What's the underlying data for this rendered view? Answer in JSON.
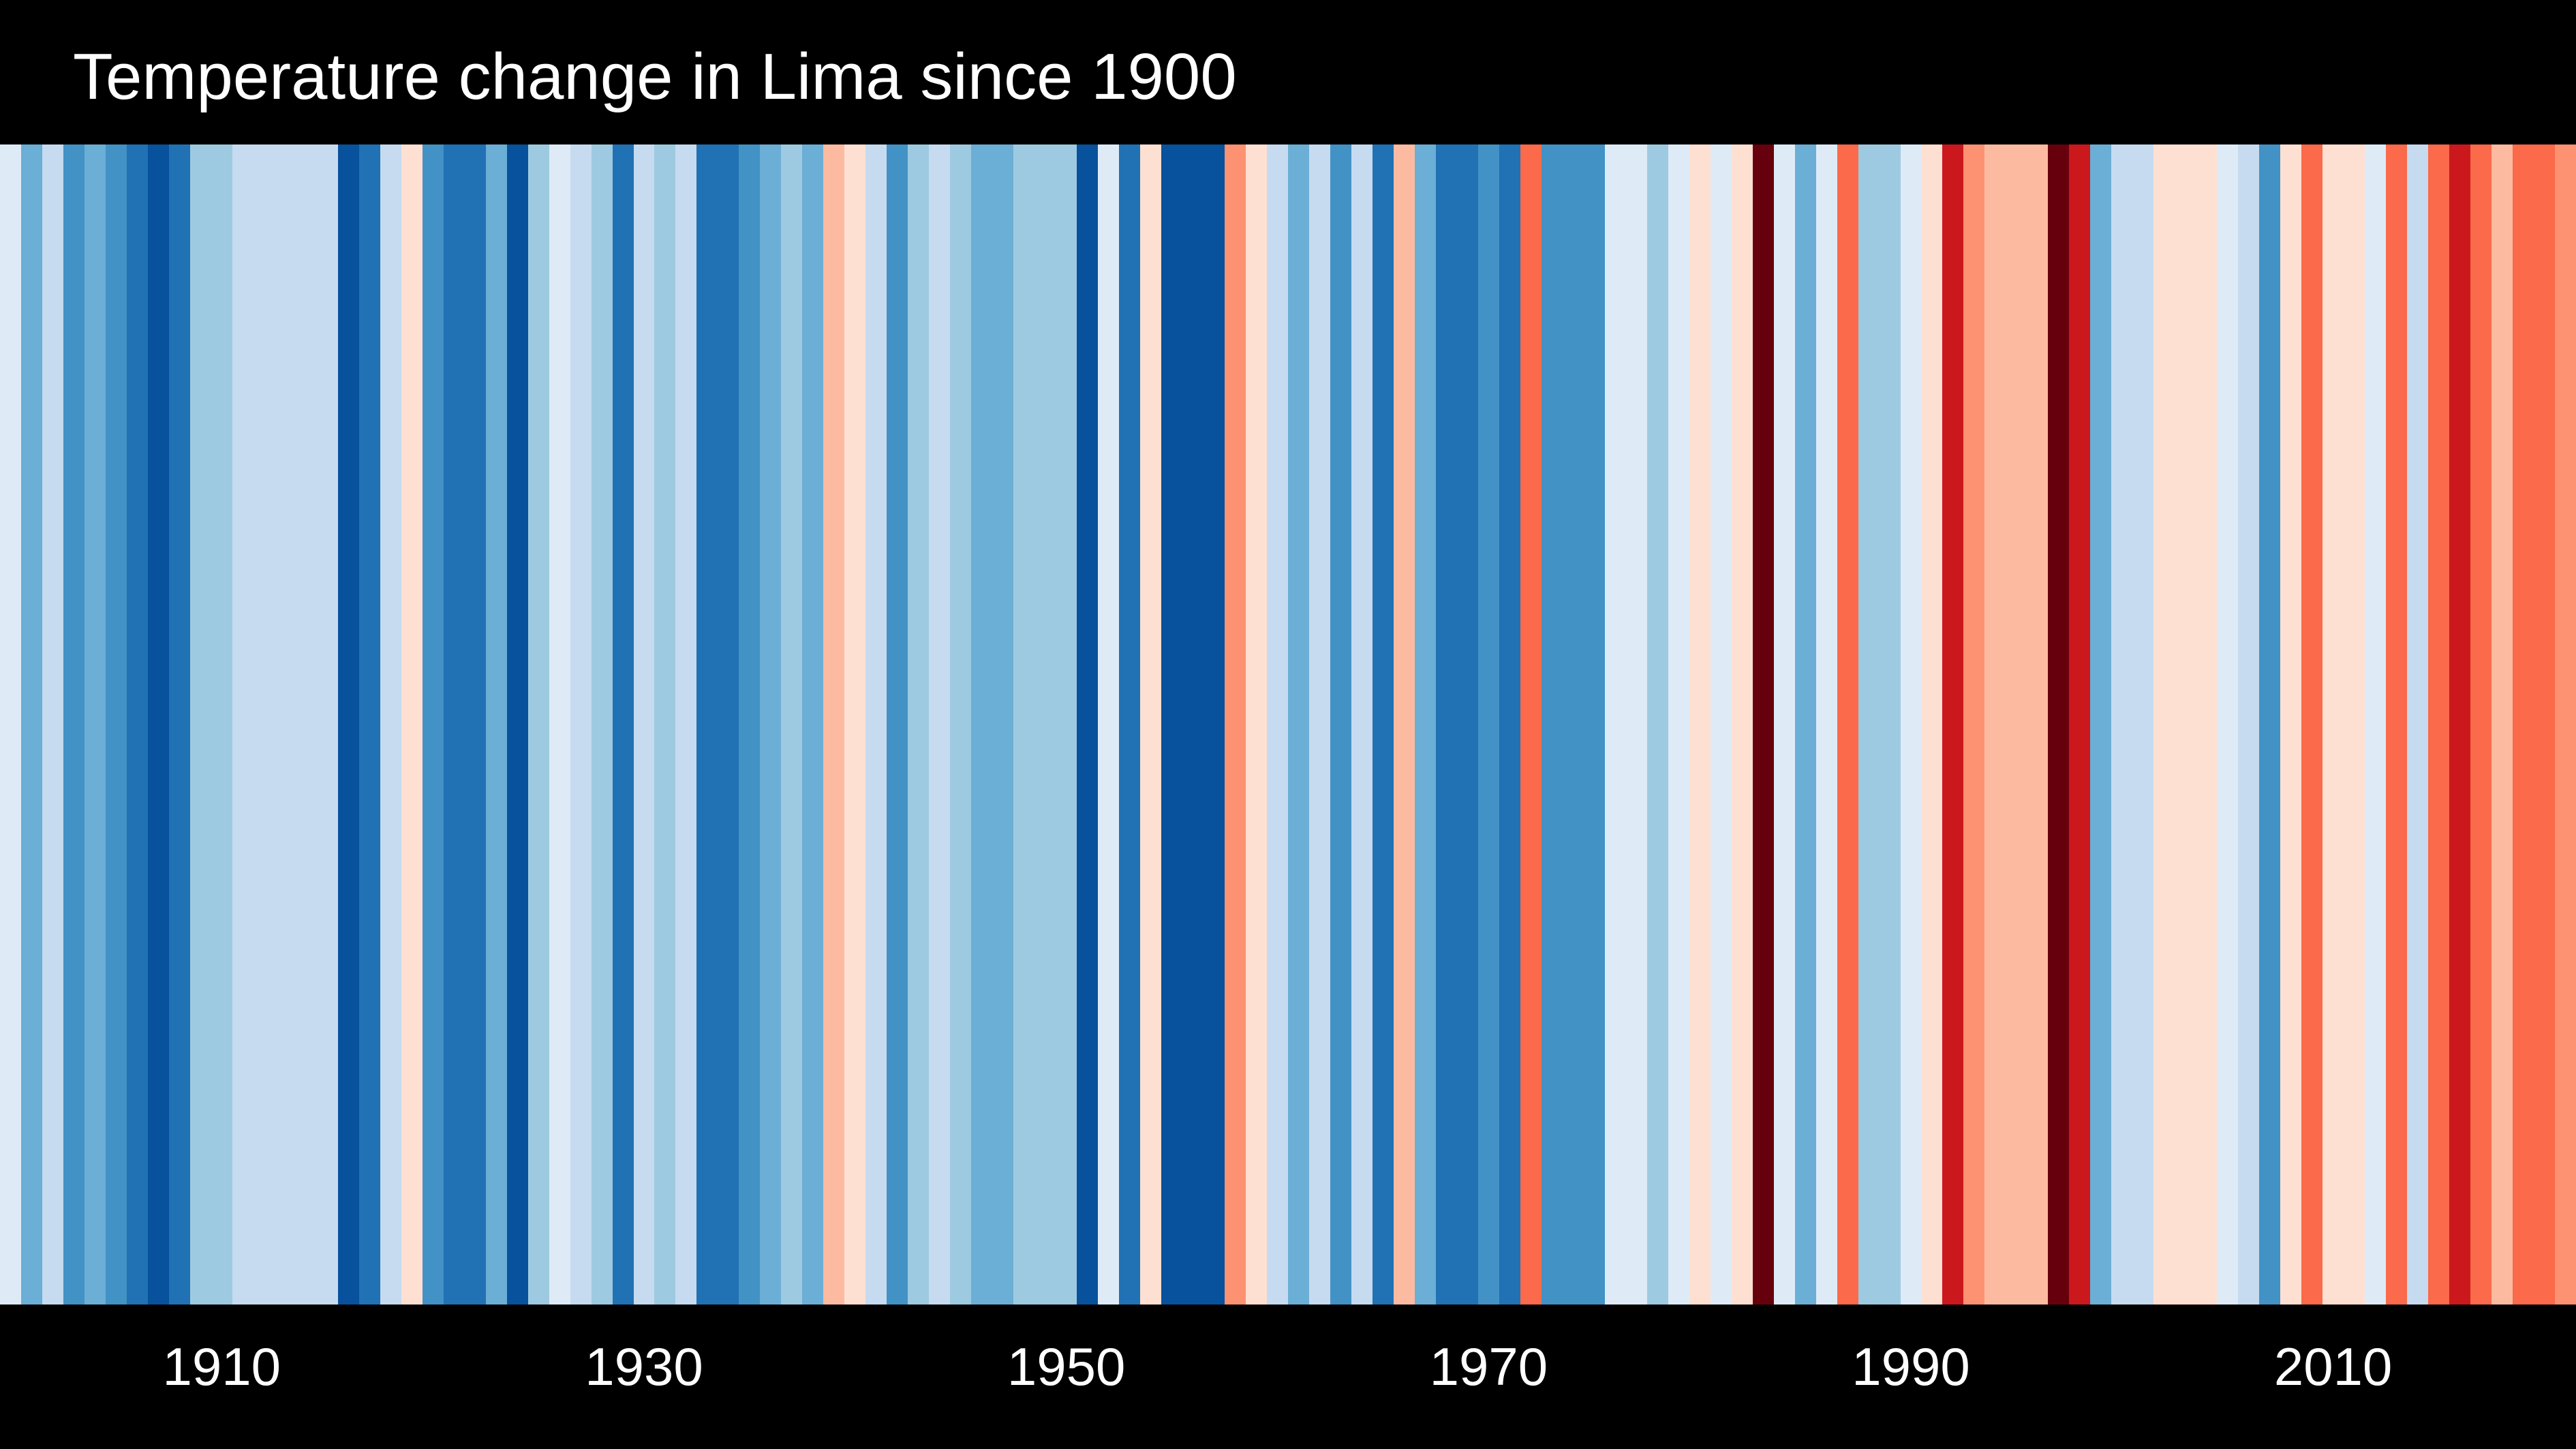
{
  "chart_data": {
    "type": "heatmap",
    "title": "Temperature change in Lima since 1900",
    "xlabel": "",
    "ylabel": "",
    "x_tick_labels": [
      "1910",
      "1930",
      "1950",
      "1970",
      "1990",
      "2010"
    ],
    "x_ticks": [
      1910,
      1930,
      1950,
      1970,
      1990,
      2010
    ],
    "x_range": [
      1900,
      2022
    ],
    "grid": false,
    "legend": "none",
    "colors": {
      "background": "#000000",
      "text": "#ffffff"
    },
    "years": [
      1900,
      1901,
      1902,
      1903,
      1904,
      1905,
      1906,
      1907,
      1908,
      1909,
      1910,
      1911,
      1912,
      1913,
      1914,
      1915,
      1916,
      1917,
      1918,
      1919,
      1920,
      1921,
      1922,
      1923,
      1924,
      1925,
      1926,
      1927,
      1928,
      1929,
      1930,
      1931,
      1932,
      1933,
      1934,
      1935,
      1936,
      1937,
      1938,
      1939,
      1940,
      1941,
      1942,
      1943,
      1944,
      1945,
      1946,
      1947,
      1948,
      1949,
      1950,
      1951,
      1952,
      1953,
      1954,
      1955,
      1956,
      1957,
      1958,
      1959,
      1960,
      1961,
      1962,
      1963,
      1964,
      1965,
      1966,
      1967,
      1968,
      1969,
      1970,
      1971,
      1972,
      1973,
      1974,
      1975,
      1976,
      1977,
      1978,
      1979,
      1980,
      1981,
      1982,
      1983,
      1984,
      1985,
      1986,
      1987,
      1988,
      1989,
      1990,
      1991,
      1992,
      1993,
      1994,
      1995,
      1996,
      1997,
      1998,
      1999,
      2000,
      2001,
      2002,
      2003,
      2004,
      2005,
      2006,
      2007,
      2008,
      2009,
      2010,
      2011,
      2012,
      2013,
      2014,
      2015,
      2016,
      2017,
      2018,
      2019,
      2020,
      2021
    ],
    "stripe_colors": [
      "#deebf7",
      "#6baed6",
      "#c6dbef",
      "#4292c6",
      "#6baed6",
      "#4292c6",
      "#2171b5",
      "#08519c",
      "#2171b5",
      "#9ecae1",
      "#9ecae1",
      "#c6dbef",
      "#c6dbef",
      "#c6dbef",
      "#c6dbef",
      "#c6dbef",
      "#08519c",
      "#2171b5",
      "#c6dbef",
      "#fee0d2",
      "#4292c6",
      "#2171b5",
      "#2171b5",
      "#6baed6",
      "#08519c",
      "#9ecae1",
      "#deebf7",
      "#c6dbef",
      "#9ecae1",
      "#2171b5",
      "#c6dbef",
      "#9ecae1",
      "#c6dbef",
      "#2171b5",
      "#2171b5",
      "#4292c6",
      "#6baed6",
      "#9ecae1",
      "#6baed6",
      "#fcbba1",
      "#fee0d2",
      "#c6dbef",
      "#4292c6",
      "#9ecae1",
      "#c6dbef",
      "#9ecae1",
      "#6baed6",
      "#6baed6",
      "#9ecae1",
      "#9ecae1",
      "#9ecae1",
      "#08519c",
      "#deebf7",
      "#2171b5",
      "#fee0d2",
      "#08519c",
      "#08519c",
      "#08519c",
      "#fc9272",
      "#fee0d2",
      "#c6dbef",
      "#6baed6",
      "#c6dbef",
      "#4292c6",
      "#c6dbef",
      "#2171b5",
      "#fcbba1",
      "#6baed6",
      "#2171b5",
      "#2171b5",
      "#4292c6",
      "#2171b5",
      "#fb6a4a",
      "#4292c6",
      "#4292c6",
      "#4292c6",
      "#deebf7",
      "#deebf7",
      "#9ecae1",
      "#deebf7",
      "#fee0d2",
      "#deebf7",
      "#fee0d2",
      "#67000d",
      "#deebf7",
      "#6baed6",
      "#deebf7",
      "#fb6a4a",
      "#9ecae1",
      "#9ecae1",
      "#deebf7",
      "#fee0d2",
      "#cb181d",
      "#fc9272",
      "#fcbba1",
      "#fcbba1",
      "#fcbba1",
      "#67000d",
      "#cb181d",
      "#6baed6",
      "#c6dbef",
      "#c6dbef",
      "#fee0d2",
      "#fee0d2",
      "#fee0d2",
      "#deebf7",
      "#c6dbef",
      "#4292c6",
      "#fee0d2",
      "#fb6a4a",
      "#fee0d2",
      "#fee0d2",
      "#deebf7",
      "#fb6a4a",
      "#c6dbef",
      "#fb6a4a",
      "#cb181d",
      "#fb6a4a",
      "#fcbba1",
      "#fb6a4a",
      "#fb6a4a",
      "#fc9272"
    ]
  }
}
